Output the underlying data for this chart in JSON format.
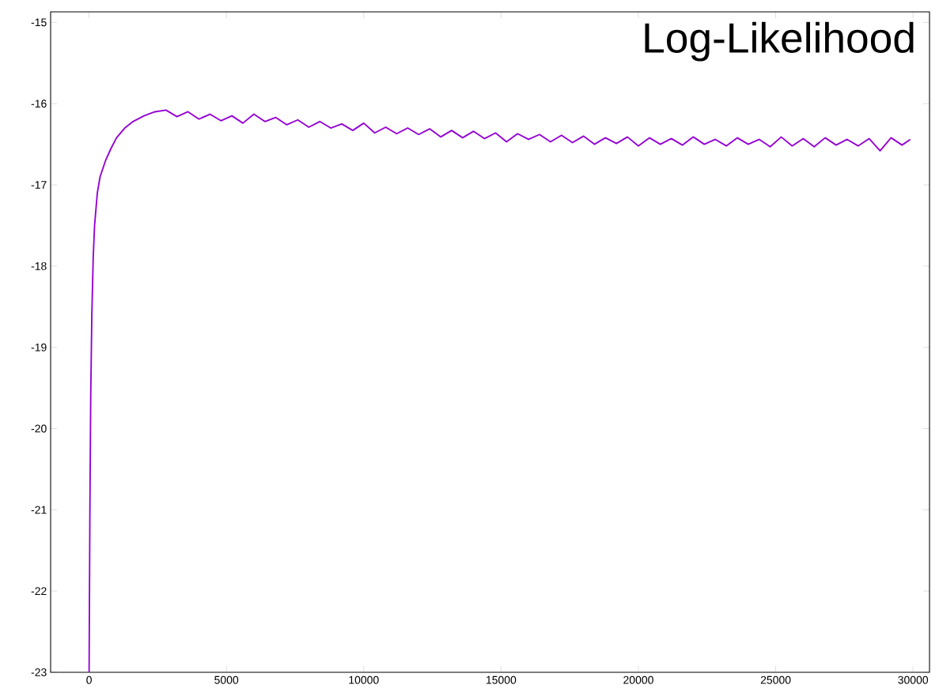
{
  "chart_data": {
    "type": "line",
    "title": "Log-Likelihood",
    "xlim": [
      -1400,
      30600
    ],
    "ylim": [
      -23,
      -14.87
    ],
    "xticks": [
      0,
      5000,
      10000,
      15000,
      20000,
      25000,
      30000
    ],
    "yticks": [
      -23,
      -22,
      -21,
      -20,
      -19,
      -18,
      -17,
      -16,
      -15
    ],
    "grid": false,
    "marker": "none",
    "line_style": "solid",
    "series": [
      {
        "color": "#9400d3",
        "x": [
          0,
          30,
          60,
          100,
          150,
          200,
          300,
          400,
          600,
          800,
          1000,
          1300,
          1600,
          2000,
          2400,
          2800,
          3200,
          3600,
          4000,
          4400,
          4800,
          5200,
          5600,
          6000,
          6400,
          6800,
          7200,
          7600,
          8000,
          8400,
          8800,
          9200,
          9600,
          10000,
          10400,
          10800,
          11200,
          11600,
          12000,
          12400,
          12800,
          13200,
          13600,
          14000,
          14400,
          14800,
          15200,
          15600,
          16000,
          16400,
          16800,
          17200,
          17600,
          18000,
          18400,
          18800,
          19200,
          19600,
          20000,
          20400,
          20800,
          21200,
          21600,
          22000,
          22400,
          22800,
          23200,
          23600,
          24000,
          24400,
          24800,
          25200,
          25600,
          26000,
          26400,
          26800,
          27200,
          27600,
          28000,
          28400,
          28800,
          29200,
          29600,
          29900
        ],
        "values": [
          -23,
          -21,
          -19.6,
          -18.6,
          -17.9,
          -17.5,
          -17.1,
          -16.9,
          -16.7,
          -16.55,
          -16.42,
          -16.3,
          -16.22,
          -16.15,
          -16.1,
          -16.08,
          -16.16,
          -16.1,
          -16.19,
          -16.13,
          -16.21,
          -16.15,
          -16.24,
          -16.13,
          -16.22,
          -16.17,
          -16.26,
          -16.2,
          -16.29,
          -16.22,
          -16.3,
          -16.25,
          -16.33,
          -16.24,
          -16.36,
          -16.29,
          -16.37,
          -16.3,
          -16.38,
          -16.31,
          -16.41,
          -16.33,
          -16.42,
          -16.34,
          -16.43,
          -16.36,
          -16.47,
          -16.37,
          -16.44,
          -16.38,
          -16.47,
          -16.39,
          -16.48,
          -16.4,
          -16.5,
          -16.42,
          -16.49,
          -16.41,
          -16.52,
          -16.42,
          -16.5,
          -16.43,
          -16.51,
          -16.41,
          -16.5,
          -16.44,
          -16.52,
          -16.42,
          -16.5,
          -16.44,
          -16.53,
          -16.41,
          -16.52,
          -16.43,
          -16.53,
          -16.42,
          -16.51,
          -16.44,
          -16.52,
          -16.43,
          -16.58,
          -16.42,
          -16.51,
          -16.44
        ]
      }
    ]
  }
}
